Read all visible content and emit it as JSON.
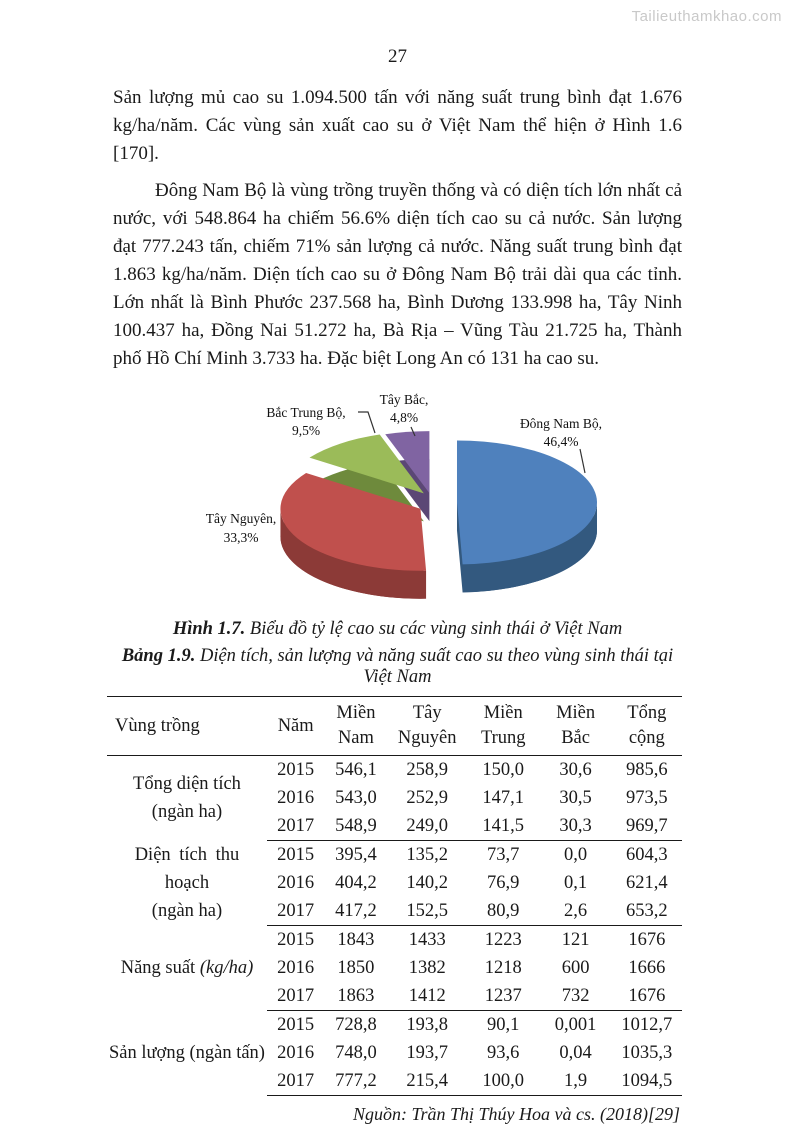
{
  "watermark": "Tailieuthamkhao.com",
  "page_number": "27",
  "paragraphs": {
    "p1": "Sản lượng mủ cao su 1.094.500 tấn với năng suất trung bình đạt 1.676 kg/ha/năm. Các vùng sản xuất cao su ở Việt Nam thể hiện ở Hình 1.6 [170].",
    "p2": "Đông Nam Bộ là vùng trồng truyền thống và có diện tích lớn nhất cả nước, với 548.864 ha chiếm 56.6% diện tích cao su cả nước. Sản lượng đạt 777.243 tấn, chiếm 71% sản lượng cả nước. Năng suất trung bình đạt 1.863 kg/ha/năm. Diện tích cao su ở Đông Nam Bộ trải dài qua các tỉnh. Lớn nhất là Bình Phước 237.568 ha, Bình Dương 133.998 ha, Tây Ninh 100.437 ha, Đồng Nai 51.272 ha, Bà Rịa – Vũng Tàu 21.725 ha, Thành phố Hồ Chí Minh 3.733 ha. Đặc biệt Long An có 131 ha cao su."
  },
  "chart_data": {
    "type": "pie",
    "style": "3d-exploded",
    "title": "Tỷ lệ cao su các vùng sinh thái ở Việt Nam",
    "legend_position": "none",
    "slices": [
      {
        "label": "Đông Nam Bộ",
        "value": 46.4,
        "line1": "Đông Nam Bộ,",
        "line2": "46,4%",
        "color": "#4f81bd",
        "side_color": "#33597f",
        "explode": 26
      },
      {
        "label": "Tây Nguyên",
        "value": 33.3,
        "line1": "Tây Nguyên,",
        "line2": "33,3%",
        "color": "#c0504d",
        "side_color": "#8c3a37",
        "explode": 12
      },
      {
        "label": "Bắc Trung Bộ",
        "value": 9.5,
        "line1": "Bắc Trung Bộ,",
        "line2": "9,5%",
        "color": "#9bbb59",
        "side_color": "#6e8a3c",
        "explode": 12
      },
      {
        "label": "Tây Bắc",
        "value": 4.8,
        "line1": "Tây Bắc,",
        "line2": "4,8%",
        "color": "#8064a2",
        "side_color": "#5b4775",
        "explode": 10
      }
    ]
  },
  "figure": {
    "caption_label": "Hình 1.7.",
    "caption_text": "Biểu đồ tỷ lệ cao su các vùng sinh thái ở Việt Nam"
  },
  "table": {
    "caption_label": "Bảng 1.9.",
    "caption_text": "Diện tích, sản lượng và năng suất cao su theo vùng sinh thái tại Việt Nam",
    "headers": [
      "Vùng trồng",
      "Năm",
      "Miền Nam",
      "Tây Nguyên",
      "Miền Trung",
      "Miền Bắc",
      "Tổng cộng"
    ],
    "groups": [
      {
        "name": "Tổng diện tích",
        "unit": "(ngàn ha)",
        "rows": [
          [
            "2015",
            "546,1",
            "258,9",
            "150,0",
            "30,6",
            "985,6"
          ],
          [
            "2016",
            "543,0",
            "252,9",
            "147,1",
            "30,5",
            "973,5"
          ],
          [
            "2017",
            "548,9",
            "249,0",
            "141,5",
            "30,3",
            "969,7"
          ]
        ]
      },
      {
        "name": "Diện tích thu hoạch",
        "unit": "(ngàn ha)",
        "rows": [
          [
            "2015",
            "395,4",
            "135,2",
            "73,7",
            "0,0",
            "604,3"
          ],
          [
            "2016",
            "404,2",
            "140,2",
            "76,9",
            "0,1",
            "621,4"
          ],
          [
            "2017",
            "417,2",
            "152,5",
            "80,9",
            "2,6",
            "653,2"
          ]
        ]
      },
      {
        "name": "Năng suất",
        "unit": "(kg/ha)",
        "rows": [
          [
            "2015",
            "1843",
            "1433",
            "1223",
            "121",
            "1676"
          ],
          [
            "2016",
            "1850",
            "1382",
            "1218",
            "600",
            "1666"
          ],
          [
            "2017",
            "1863",
            "1412",
            "1237",
            "732",
            "1676"
          ]
        ]
      },
      {
        "name": "Sản lượng",
        "unit": "(ngàn tấn)",
        "rows": [
          [
            "2015",
            "728,8",
            "193,8",
            "90,1",
            "0,001",
            "1012,7"
          ],
          [
            "2016",
            "748,0",
            "193,7",
            "93,6",
            "0,04",
            "1035,3"
          ],
          [
            "2017",
            "777,2",
            "215,4",
            "100,0",
            "1,9",
            "1094,5"
          ]
        ]
      }
    ],
    "source": "Nguồn: Trần Thị Thúy Hoa và cs. (2018)[29]"
  }
}
